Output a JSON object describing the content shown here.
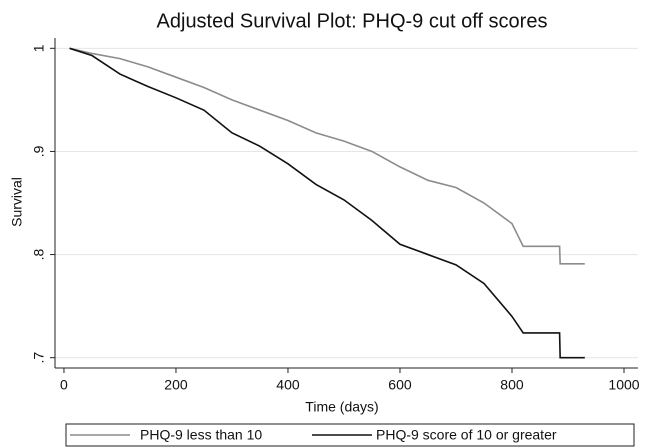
{
  "chart_data": {
    "type": "line",
    "title": "Adjusted Survival Plot: PHQ-9 cut off scores",
    "x_label": "Time (days)",
    "y_label": "Survival",
    "x": [
      10,
      50,
      100,
      150,
      200,
      250,
      300,
      350,
      400,
      450,
      500,
      550,
      600,
      650,
      700,
      750,
      800,
      820,
      885,
      886,
      930
    ],
    "series": [
      {
        "name": "PHQ-9 less than 10",
        "color": "#8c8c8c",
        "values": [
          1.0,
          0.995,
          0.99,
          0.982,
          0.972,
          0.962,
          0.95,
          0.94,
          0.93,
          0.918,
          0.91,
          0.9,
          0.885,
          0.872,
          0.865,
          0.85,
          0.83,
          0.808,
          0.808,
          0.791,
          0.791
        ]
      },
      {
        "name": "PHQ-9 score of 10 or greater",
        "color": "#111111",
        "values": [
          1.0,
          0.993,
          0.975,
          0.963,
          0.952,
          0.94,
          0.918,
          0.905,
          0.888,
          0.868,
          0.853,
          0.833,
          0.81,
          0.8,
          0.79,
          0.772,
          0.74,
          0.724,
          0.724,
          0.7,
          0.7
        ]
      }
    ],
    "xlim": [
      -16,
      1025
    ],
    "xticks": [
      0,
      200,
      400,
      600,
      800,
      1000
    ],
    "ylim": [
      0.69,
      1.01
    ],
    "yticks": [
      1,
      {
        "value": 0.9,
        "label": ".9"
      },
      {
        "value": 0.8,
        "label": ".8"
      },
      {
        "value": 0.7,
        "label": ".7"
      }
    ],
    "grid": true,
    "legend": "bottom"
  }
}
